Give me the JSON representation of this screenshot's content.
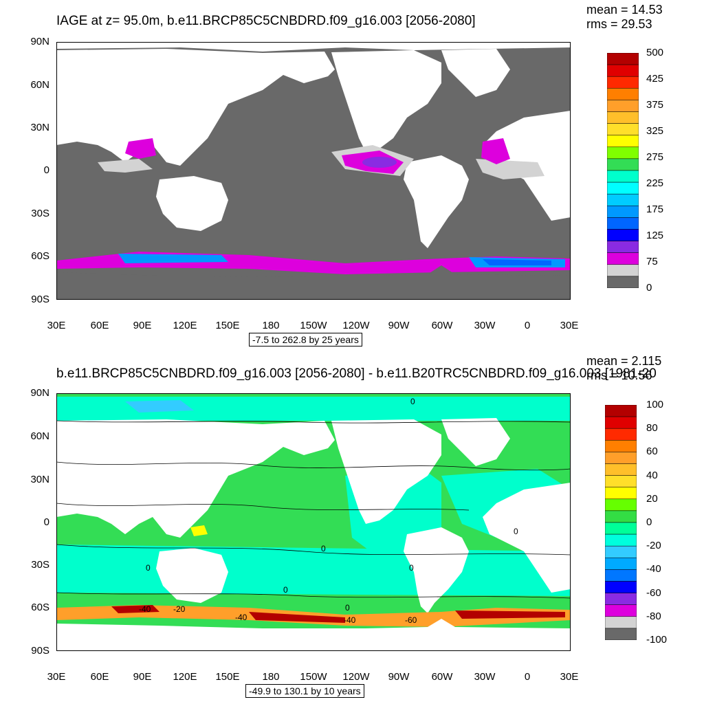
{
  "panel1": {
    "title": "IAGE at z=  95.0m, b.e11.BRCP85C5CNBDRD.f09_g16.003 [2056-2080]",
    "stats": {
      "mean": "mean = 14.53",
      "rms": "rms = 29.53"
    },
    "range_label": "-7.5 to 262.8 by 25 years",
    "colorbar": {
      "colors": [
        "#b30000",
        "#e00000",
        "#ff2a00",
        "#ff7f00",
        "#ff9f2a",
        "#ffbf2a",
        "#ffdf2a",
        "#ffff00",
        "#80ff00",
        "#33dd55",
        "#00ffcc",
        "#00ffff",
        "#00ccff",
        "#0099ff",
        "#0066ff",
        "#0000ff",
        "#8a2be2",
        "#dd00dd",
        "#d3d3d3",
        "#696969"
      ],
      "labels": [
        "500",
        "425",
        "375",
        "325",
        "275",
        "225",
        "175",
        "125",
        "75",
        "0"
      ]
    }
  },
  "panel2": {
    "title": "b.e11.BRCP85C5CNBDRD.f09_g16.003 [2056-2080] - b.e11.B20TRC5CNBDRD.f09_g16.003 [1981-20",
    "stats": {
      "mean": "mean = 2.115",
      "rms": "rms = 10.56"
    },
    "range_label": "-49.9 to 130.1 by 10 years",
    "colorbar": {
      "colors": [
        "#b30000",
        "#e00000",
        "#ff2a00",
        "#ff7f00",
        "#ff9f2a",
        "#ffbf2a",
        "#ffdf2a",
        "#ffff00",
        "#66ff00",
        "#33dd44",
        "#00ff99",
        "#00ffdd",
        "#33ccff",
        "#00aaff",
        "#0077ff",
        "#0000ff",
        "#8a2be2",
        "#dd00dd",
        "#d3d3d3",
        "#696969"
      ],
      "labels": [
        "100",
        "80",
        "60",
        "40",
        "20",
        "0",
        "-20",
        "-40",
        "-60",
        "-80",
        "-100"
      ],
      "contour_labels": [
        "0",
        "0",
        "0",
        "0",
        "0",
        "0",
        "-40",
        "-20",
        "-40",
        "0",
        "-40",
        "-60"
      ]
    }
  },
  "axes": {
    "y_ticks": [
      "90N",
      "60N",
      "30N",
      "0",
      "30S",
      "60S",
      "90S"
    ],
    "x_ticks": [
      "30E",
      "60E",
      "90E",
      "120E",
      "150E",
      "180",
      "150W",
      "120W",
      "90W",
      "60W",
      "30W",
      "0",
      "30E"
    ]
  },
  "colors": {
    "land": "#ffffff",
    "panel1_ocean": "#696969",
    "panel1_shelf": "#d3d3d3",
    "panel1_young": "#dd00dd",
    "panel2_ocean_main": "#33dd55",
    "panel2_ocean_cyan": "#00ffcc"
  }
}
